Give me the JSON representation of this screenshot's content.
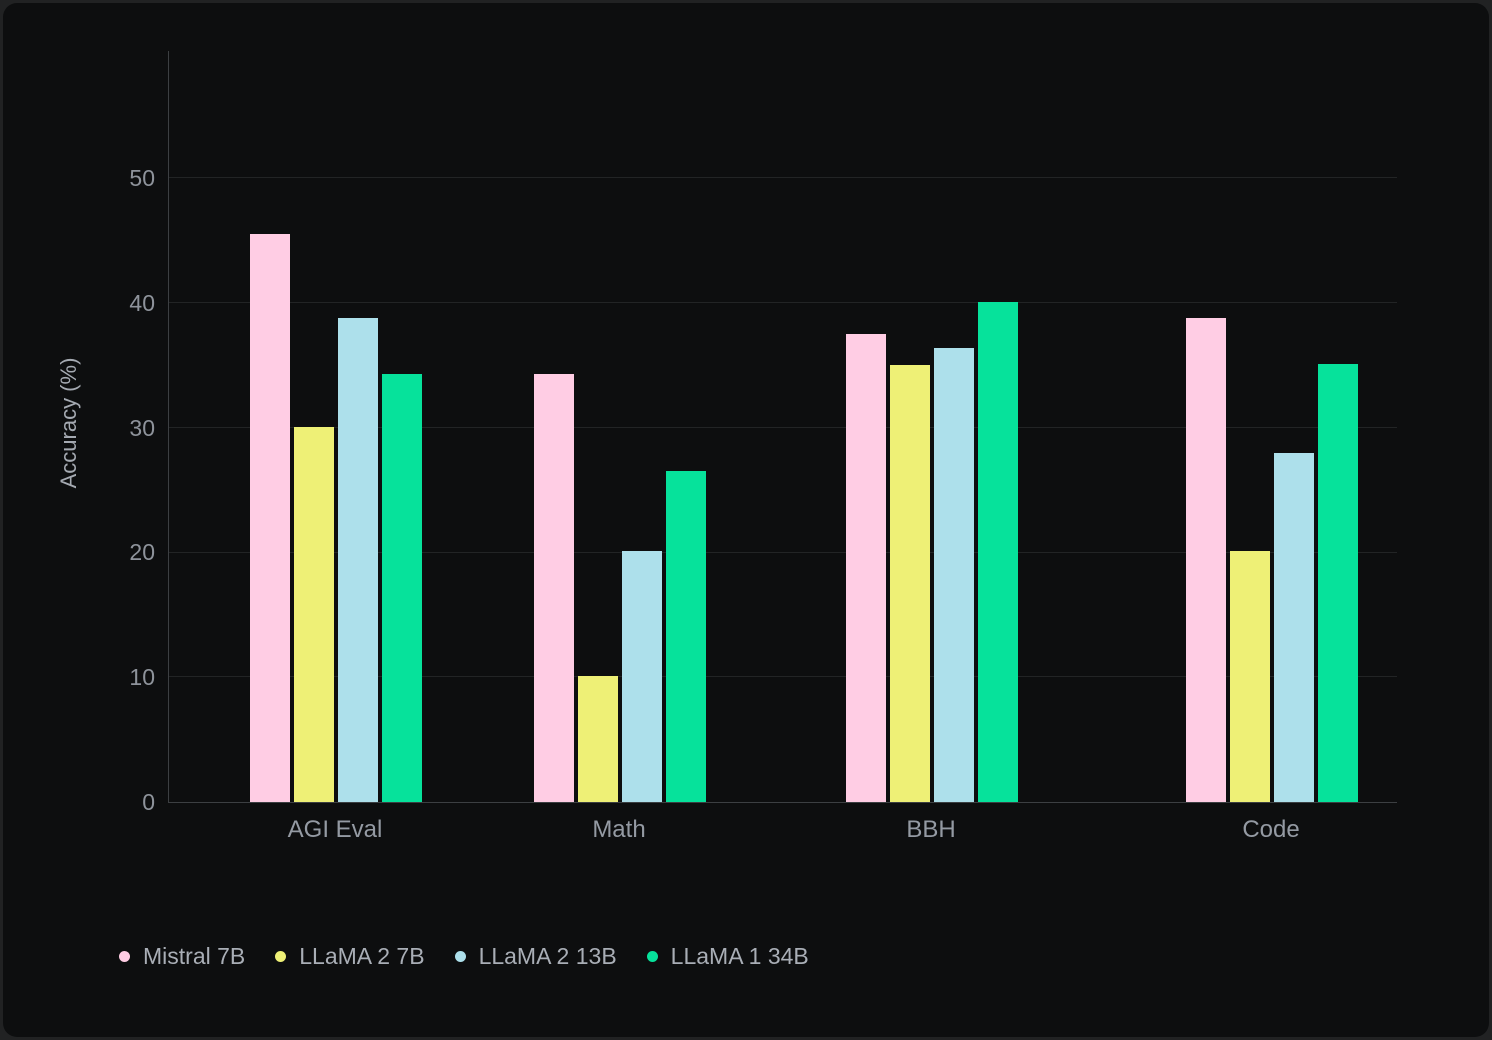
{
  "page": {
    "background": "#212223",
    "card_background": "#0d0e0f"
  },
  "chart_data": {
    "type": "bar",
    "title": "",
    "ylabel": "Accuracy (%)",
    "xlabel": "",
    "categories": [
      "AGI Eval",
      "Math",
      "BBH",
      "Code"
    ],
    "series": [
      {
        "name": "Mistral 7B",
        "color": "#ffcde4",
        "values": [
          45.5,
          34.3,
          37.5,
          38.8
        ]
      },
      {
        "name": "LLaMA 2 7B",
        "color": "#eef076",
        "values": [
          30.1,
          10.1,
          35.0,
          20.1
        ]
      },
      {
        "name": "LLaMA 2 13B",
        "color": "#ade0eb",
        "values": [
          38.8,
          20.1,
          36.4,
          28.0
        ]
      },
      {
        "name": "LLaMA 1 34B",
        "color": "#06e29b",
        "values": [
          34.3,
          26.5,
          40.1,
          35.1
        ]
      }
    ],
    "yticks": [
      0,
      10,
      20,
      30,
      40,
      50
    ],
    "ylim": [
      0,
      60.2
    ],
    "grid": true,
    "legend_position": "bottom-left",
    "axis_colors": {
      "axis_line": "#3c3f42",
      "gridline": "#222425",
      "tick_label": "#8e939b",
      "category_label": "#949aa3"
    }
  }
}
